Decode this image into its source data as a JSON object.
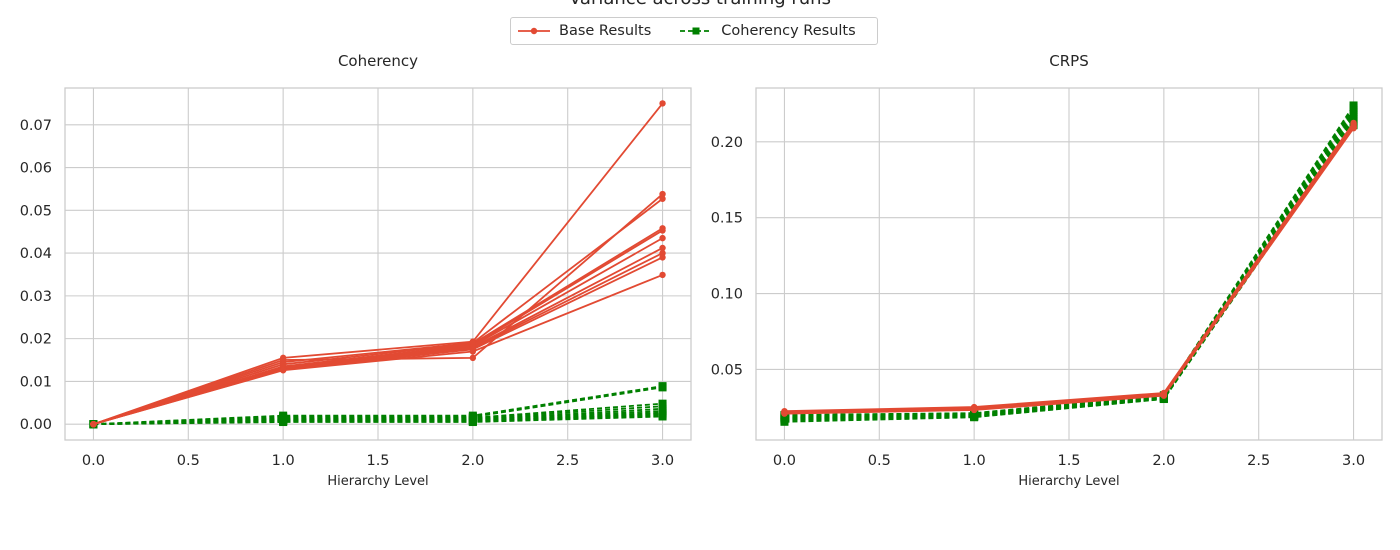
{
  "figure": {
    "title": "Variance across training runs"
  },
  "legend": {
    "items": [
      {
        "label": "Base Results",
        "color": "#e24a33",
        "marker": "circle",
        "linestyle": "solid"
      },
      {
        "label": "Coherency Results",
        "color": "#008000",
        "marker": "square",
        "linestyle": "dashed"
      }
    ],
    "placement": "top-center"
  },
  "chart_data": [
    {
      "type": "line",
      "title": "Coherency",
      "xlabel": "Hierarchy Level",
      "ylabel": "",
      "x": [
        0,
        1,
        2,
        3
      ],
      "xlim": [
        -0.15,
        3.15
      ],
      "ylim": [
        -0.0037,
        0.0786
      ],
      "xticks": [
        "0.0",
        "0.5",
        "1.0",
        "1.5",
        "2.0",
        "2.5",
        "3.0"
      ],
      "yticks": [
        "0.00",
        "0.01",
        "0.02",
        "0.03",
        "0.04",
        "0.05",
        "0.06",
        "0.07"
      ],
      "grid": true,
      "series": [
        {
          "group": "Base Results",
          "values": [
            0,
            0.0155,
            0.0193,
            0.075
          ]
        },
        {
          "group": "Base Results",
          "values": [
            0,
            0.015,
            0.0155,
            0.0538
          ]
        },
        {
          "group": "Base Results",
          "values": [
            0,
            0.0145,
            0.019,
            0.0527
          ]
        },
        {
          "group": "Base Results",
          "values": [
            0,
            0.014,
            0.0188,
            0.0458
          ]
        },
        {
          "group": "Base Results",
          "values": [
            0,
            0.0135,
            0.0185,
            0.0453
          ]
        },
        {
          "group": "Base Results",
          "values": [
            0,
            0.0132,
            0.0183,
            0.0435
          ]
        },
        {
          "group": "Base Results",
          "values": [
            0,
            0.013,
            0.018,
            0.0412
          ]
        },
        {
          "group": "Base Results",
          "values": [
            0,
            0.0128,
            0.0178,
            0.04
          ]
        },
        {
          "group": "Base Results",
          "values": [
            0,
            0.0127,
            0.0175,
            0.039
          ]
        },
        {
          "group": "Base Results",
          "values": [
            0,
            0.0126,
            0.017,
            0.0349
          ]
        },
        {
          "group": "Coherency Results",
          "values": [
            0,
            0.002,
            0.002,
            0.0089
          ]
        },
        {
          "group": "Coherency Results",
          "values": [
            0,
            0.0017,
            0.0017,
            0.0086
          ]
        },
        {
          "group": "Coherency Results",
          "values": [
            0,
            0.0014,
            0.0015,
            0.0048
          ]
        },
        {
          "group": "Coherency Results",
          "values": [
            0,
            0.0012,
            0.0013,
            0.0042
          ]
        },
        {
          "group": "Coherency Results",
          "values": [
            0,
            0.001,
            0.0011,
            0.0036
          ]
        },
        {
          "group": "Coherency Results",
          "values": [
            0,
            0.0009,
            0.001,
            0.0031
          ]
        },
        {
          "group": "Coherency Results",
          "values": [
            0,
            0.0008,
            0.0008,
            0.0027
          ]
        },
        {
          "group": "Coherency Results",
          "values": [
            0,
            0.0007,
            0.0007,
            0.0024
          ]
        },
        {
          "group": "Coherency Results",
          "values": [
            0,
            0.0006,
            0.0006,
            0.0021
          ]
        },
        {
          "group": "Coherency Results",
          "values": [
            0,
            0.0005,
            0.0005,
            0.0018
          ]
        }
      ]
    },
    {
      "type": "line",
      "title": "CRPS",
      "xlabel": "Hierarchy Level",
      "ylabel": "",
      "x": [
        0,
        1,
        2,
        3
      ],
      "xlim": [
        -0.15,
        3.15
      ],
      "ylim": [
        0.0035,
        0.2355
      ],
      "xticks": [
        "0.0",
        "0.5",
        "1.0",
        "1.5",
        "2.0",
        "2.5",
        "3.0"
      ],
      "yticks": [
        "0.05",
        "0.10",
        "0.15",
        "0.20"
      ],
      "grid": true,
      "series": [
        {
          "group": "Base Results",
          "values": [
            0.0225,
            0.0252,
            0.0345,
            0.2125
          ]
        },
        {
          "group": "Base Results",
          "values": [
            0.0222,
            0.025,
            0.0342,
            0.2118
          ]
        },
        {
          "group": "Base Results",
          "values": [
            0.022,
            0.0247,
            0.034,
            0.2112
          ]
        },
        {
          "group": "Base Results",
          "values": [
            0.0218,
            0.0245,
            0.0338,
            0.2108
          ]
        },
        {
          "group": "Base Results",
          "values": [
            0.0216,
            0.0243,
            0.0336,
            0.2103
          ]
        },
        {
          "group": "Base Results",
          "values": [
            0.0215,
            0.0241,
            0.0334,
            0.21
          ]
        },
        {
          "group": "Base Results",
          "values": [
            0.0213,
            0.0239,
            0.0332,
            0.2097
          ]
        },
        {
          "group": "Base Results",
          "values": [
            0.0212,
            0.0237,
            0.033,
            0.2095
          ]
        },
        {
          "group": "Base Results",
          "values": [
            0.021,
            0.0235,
            0.0329,
            0.2093
          ]
        },
        {
          "group": "Base Results",
          "values": [
            0.0209,
            0.0233,
            0.0327,
            0.209
          ]
        },
        {
          "group": "Coherency Results",
          "values": [
            0.02,
            0.0212,
            0.033,
            0.224
          ]
        },
        {
          "group": "Coherency Results",
          "values": [
            0.0195,
            0.0208,
            0.0326,
            0.2225
          ]
        },
        {
          "group": "Coherency Results",
          "values": [
            0.019,
            0.0205,
            0.0322,
            0.221
          ]
        },
        {
          "group": "Coherency Results",
          "values": [
            0.0185,
            0.0202,
            0.0318,
            0.2195
          ]
        },
        {
          "group": "Coherency Results",
          "values": [
            0.0182,
            0.0199,
            0.0315,
            0.218
          ]
        },
        {
          "group": "Coherency Results",
          "values": [
            0.0178,
            0.0196,
            0.0312,
            0.2165
          ]
        },
        {
          "group": "Coherency Results",
          "values": [
            0.0175,
            0.0193,
            0.031,
            0.215
          ]
        },
        {
          "group": "Coherency Results",
          "values": [
            0.017,
            0.019,
            0.0308,
            0.2135
          ]
        },
        {
          "group": "Coherency Results",
          "values": [
            0.0165,
            0.0188,
            0.0306,
            0.212
          ]
        },
        {
          "group": "Coherency Results",
          "values": [
            0.0155,
            0.0185,
            0.0305,
            0.211
          ]
        }
      ]
    }
  ]
}
